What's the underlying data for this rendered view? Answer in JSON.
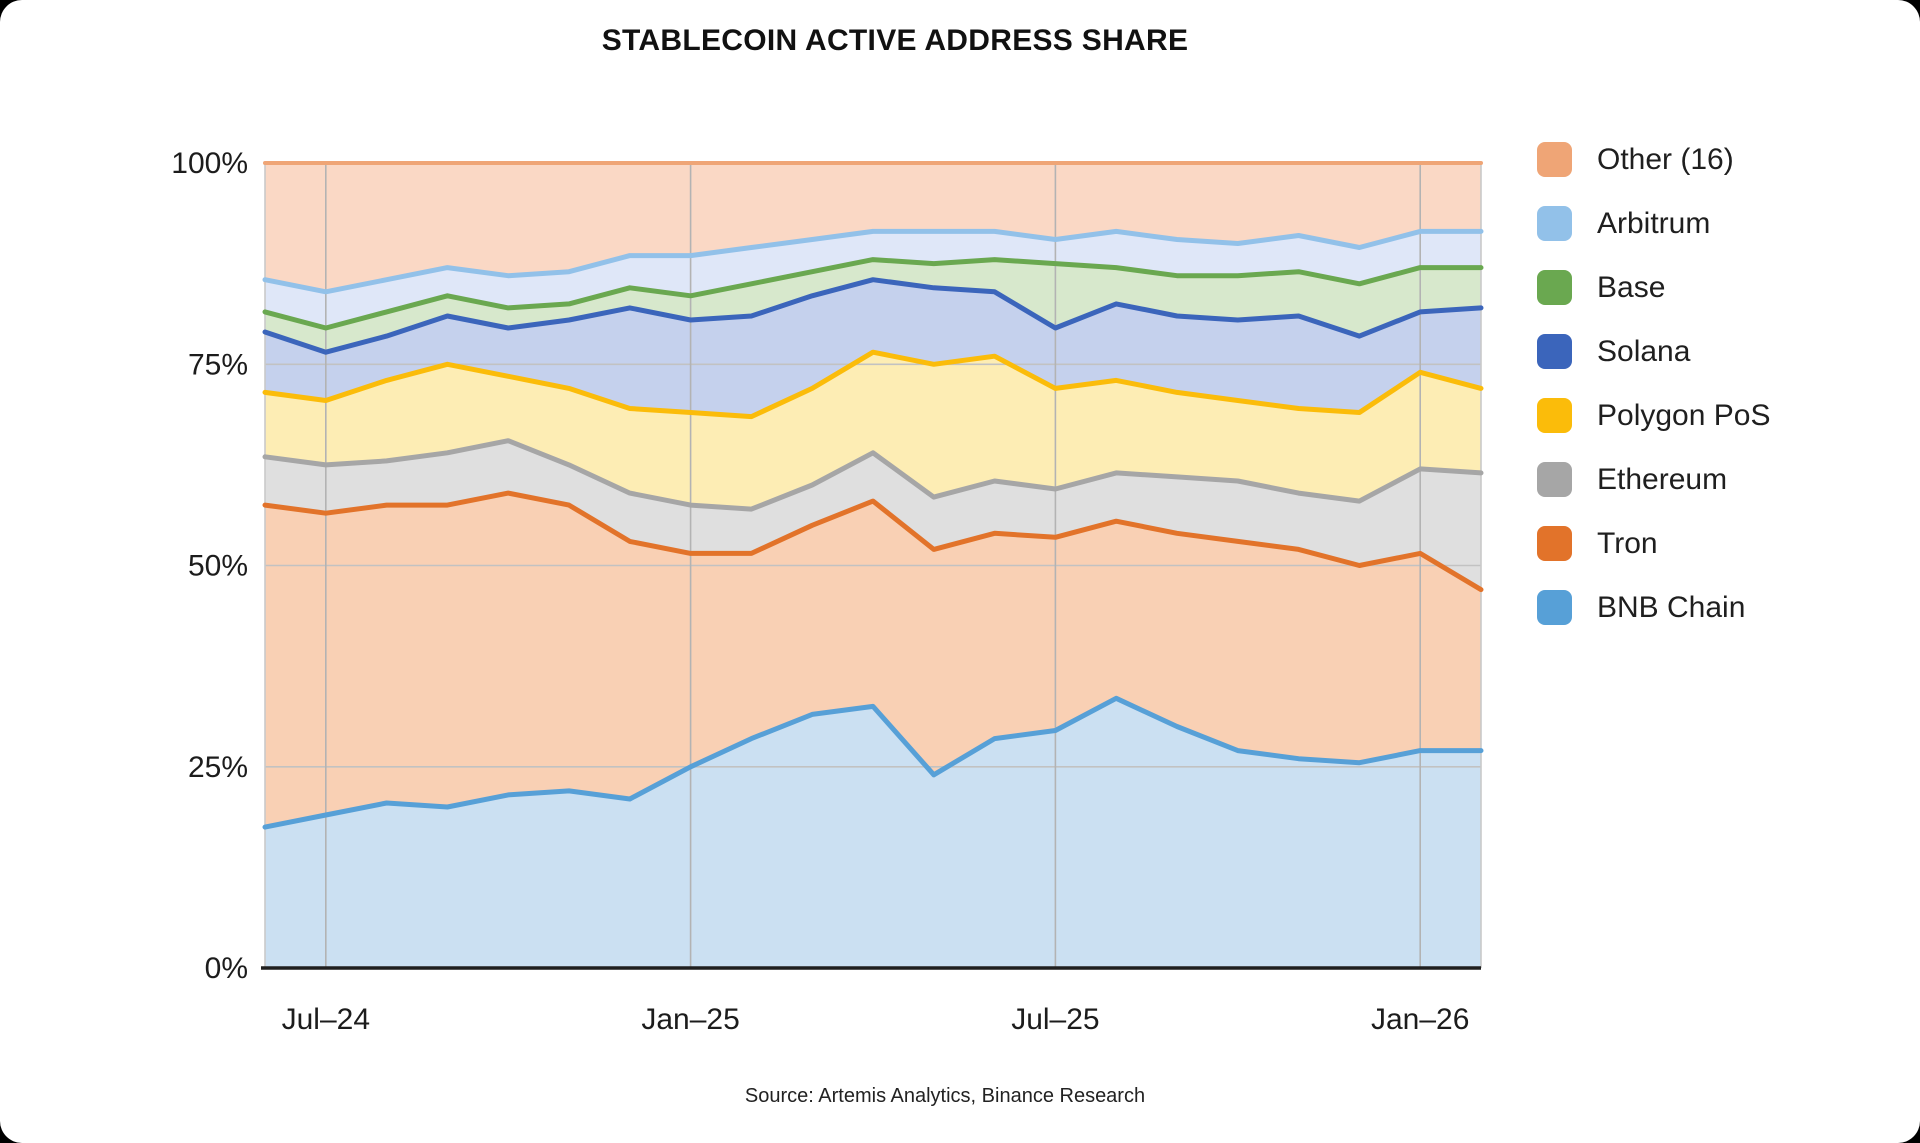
{
  "page": {
    "title": "STABLECOIN ACTIVE ADDRESS SHARE",
    "source": "Source: Artemis Analytics, Binance Research"
  },
  "chart_data": {
    "type": "area",
    "variant": "stacked-100-percent",
    "title": "STABLECOIN ACTIVE ADDRESS SHARE",
    "source": "Source: Artemis Analytics, Binance Research",
    "ylim": [
      0,
      100
    ],
    "grid": "on",
    "legend_position": "right",
    "y_ticks": [
      "0%",
      "25%",
      "50%",
      "75%",
      "100%"
    ],
    "y_tick_values": [
      0,
      25,
      50,
      75,
      100
    ],
    "x_ticks": [
      "Jul–24",
      "Jan–25",
      "Jul–25",
      "Jan–26"
    ],
    "x_tick_indices": [
      1,
      7,
      13,
      19
    ],
    "x_all": [
      "Jun-24",
      "Jul-24",
      "Aug-24",
      "Sep-24",
      "Oct-24",
      "Nov-24",
      "Dec-24",
      "Jan-25",
      "Feb-25",
      "Mar-25",
      "Apr-25",
      "May-25",
      "Jun-25",
      "Jul-25",
      "Aug-25",
      "Sep-25",
      "Oct-25",
      "Nov-25",
      "Dec-25",
      "Jan-26",
      "Feb-26"
    ],
    "unit": "percent share of stablecoin active addresses, stacked bottom to top",
    "series": [
      {
        "name": "BNB Chain",
        "line": "#57A0D7",
        "fill": "#CBE0F2",
        "values": [
          17.5,
          19,
          20.5,
          20,
          21.5,
          22,
          21,
          25,
          28.5,
          31.5,
          32.5,
          24,
          28.5,
          29.5,
          33.5,
          30,
          27,
          26,
          25.5,
          27,
          27
        ]
      },
      {
        "name": "Tron",
        "line": "#E2732A",
        "fill": "#F9D0B4",
        "values": [
          40,
          37.5,
          37,
          37.5,
          37.5,
          35.5,
          32,
          26.5,
          23,
          23.5,
          25.5,
          28,
          25.5,
          24,
          22,
          24,
          26,
          26,
          24.5,
          24.5,
          20
        ]
      },
      {
        "name": "Ethereum",
        "line": "#A6A6A6",
        "fill": "#DFDFDF",
        "values": [
          6,
          6,
          5.5,
          6.5,
          6.5,
          5,
          6,
          6,
          5.5,
          5,
          6,
          6.5,
          6.5,
          6,
          6,
          7,
          7.5,
          7,
          8,
          10.5,
          14.5
        ]
      },
      {
        "name": "Polygon PoS",
        "line": "#FBBC0A",
        "fill": "#FDEDB4",
        "values": [
          8,
          8,
          10,
          11,
          8,
          9.5,
          10.5,
          11.5,
          11.5,
          12,
          12.5,
          16.5,
          15.5,
          12.5,
          11.5,
          10.5,
          10,
          10.5,
          11,
          12,
          10.5
        ]
      },
      {
        "name": "Solana",
        "line": "#3B65BB",
        "fill": "#C5D1ED",
        "values": [
          7.5,
          6,
          5.5,
          6,
          6,
          8.5,
          12.5,
          11.5,
          12.5,
          11.5,
          9,
          9.5,
          8,
          7.5,
          9.5,
          9.5,
          10,
          11.5,
          9.5,
          7.5,
          10
        ]
      },
      {
        "name": "Base",
        "line": "#6AA850",
        "fill": "#D7E8CC",
        "values": [
          2.5,
          3,
          3,
          2.5,
          2.5,
          2,
          2.5,
          3,
          4,
          3,
          2.5,
          3,
          4,
          8,
          4.5,
          5,
          5.5,
          5.5,
          6.5,
          5.5,
          5
        ]
      },
      {
        "name": "Arbitrum",
        "line": "#92C1E9",
        "fill": "#DFE7F8",
        "values": [
          4,
          4.5,
          4,
          3.5,
          4,
          4,
          4,
          5,
          4.5,
          4,
          3.5,
          4,
          3.5,
          3,
          4.5,
          4.5,
          4,
          4.5,
          4.5,
          4.5,
          4.5
        ]
      },
      {
        "name": "Other (16)",
        "line": "#EFA576",
        "fill": "#FAD8C5",
        "values": [
          14.5,
          16,
          14.5,
          13,
          14,
          13.5,
          11.5,
          11.5,
          10.5,
          9.5,
          8.5,
          8.5,
          8.5,
          9.5,
          8.5,
          9.5,
          10,
          9,
          10.5,
          8.5,
          8.5
        ]
      }
    ],
    "legend_order_top_to_bottom": [
      "Other (16)",
      "Arbitrum",
      "Base",
      "Solana",
      "Polygon PoS",
      "Ethereum",
      "Tron",
      "BNB Chain"
    ],
    "colors": {
      "axis": "#1f1f1f",
      "gridline": "#c2c2c2",
      "vertical_gridline": "#b3b3b3",
      "plot_border": "#c9c9c9",
      "text": "#1c1c1c"
    }
  }
}
